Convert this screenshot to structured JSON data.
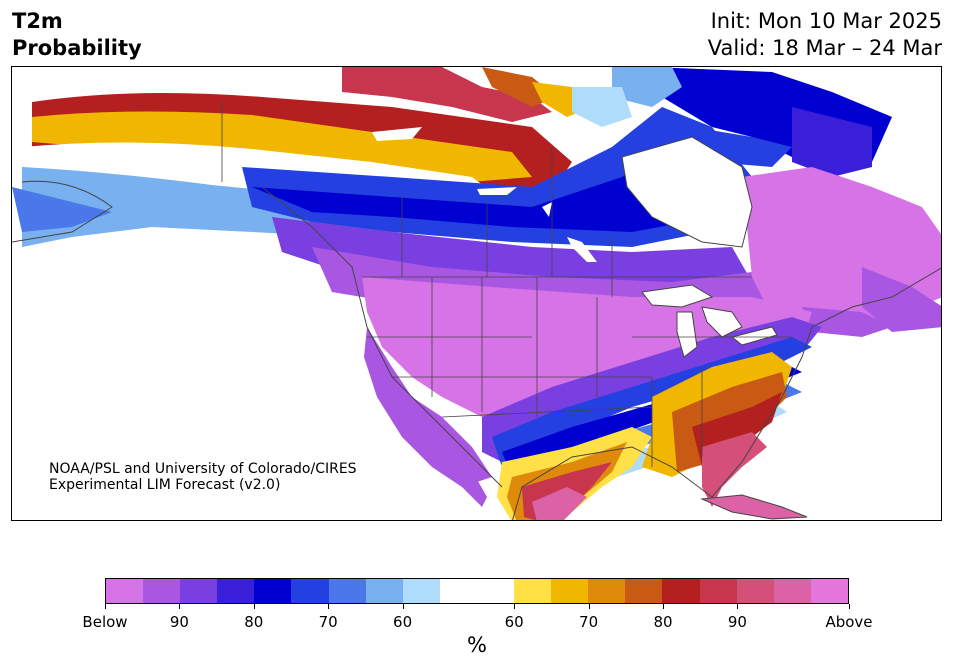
{
  "header": {
    "title_line1": "T2m",
    "title_line2": "Probability",
    "init": "Init: Mon 10 Mar 2025",
    "valid": "Valid: 18 Mar – 24 Mar"
  },
  "map": {
    "credit_line1": "NOAA/PSL and University of Colorado/CIRES",
    "credit_line2": "Experimental LIM Forecast (v2.0)"
  },
  "colorbar": {
    "colors": [
      "#d673e6",
      "#a957e3",
      "#7a3fe0",
      "#3a1fd8",
      "#0000d0",
      "#2440e0",
      "#4a78ea",
      "#78b0f0",
      "#b0dcfb",
      "#ffffff",
      "#ffffff",
      "#ffe046",
      "#f1b600",
      "#df8a0a",
      "#c95a14",
      "#b3201f",
      "#c8364d",
      "#d45078",
      "#dc62a6",
      "#e676db"
    ],
    "tick_labels": [
      "Below",
      "90",
      "80",
      "70",
      "60",
      "60",
      "70",
      "80",
      "90",
      "Above"
    ],
    "unit": "%"
  }
}
